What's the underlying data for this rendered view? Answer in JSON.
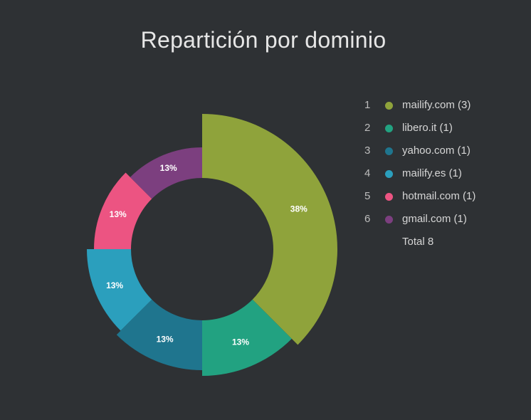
{
  "chart_data": {
    "type": "pie",
    "title": "Repartición por dominio",
    "categories": [
      "mailify.com",
      "libero.it",
      "yahoo.com",
      "mailify.es",
      "hotmail.com",
      "gmail.com"
    ],
    "values": [
      3,
      1,
      1,
      1,
      1,
      1
    ],
    "percent_labels": [
      "38%",
      "13%",
      "13%",
      "13%",
      "13%",
      "13%"
    ],
    "legend_labels": [
      "mailify.com (3)",
      "libero.it (1)",
      "yahoo.com (1)",
      "mailify.es (1)",
      "hotmail.com (1)",
      "gmail.com (1)"
    ],
    "legend_index": [
      "1",
      "2",
      "3",
      "4",
      "5",
      "6"
    ],
    "colors": [
      "#8fa33b",
      "#22a281",
      "#1f758e",
      "#2b9fbd",
      "#ec5482",
      "#7c3f7f"
    ],
    "total_label": "Total 8",
    "legend_position": "right",
    "donut": true,
    "varying_radius": true
  }
}
